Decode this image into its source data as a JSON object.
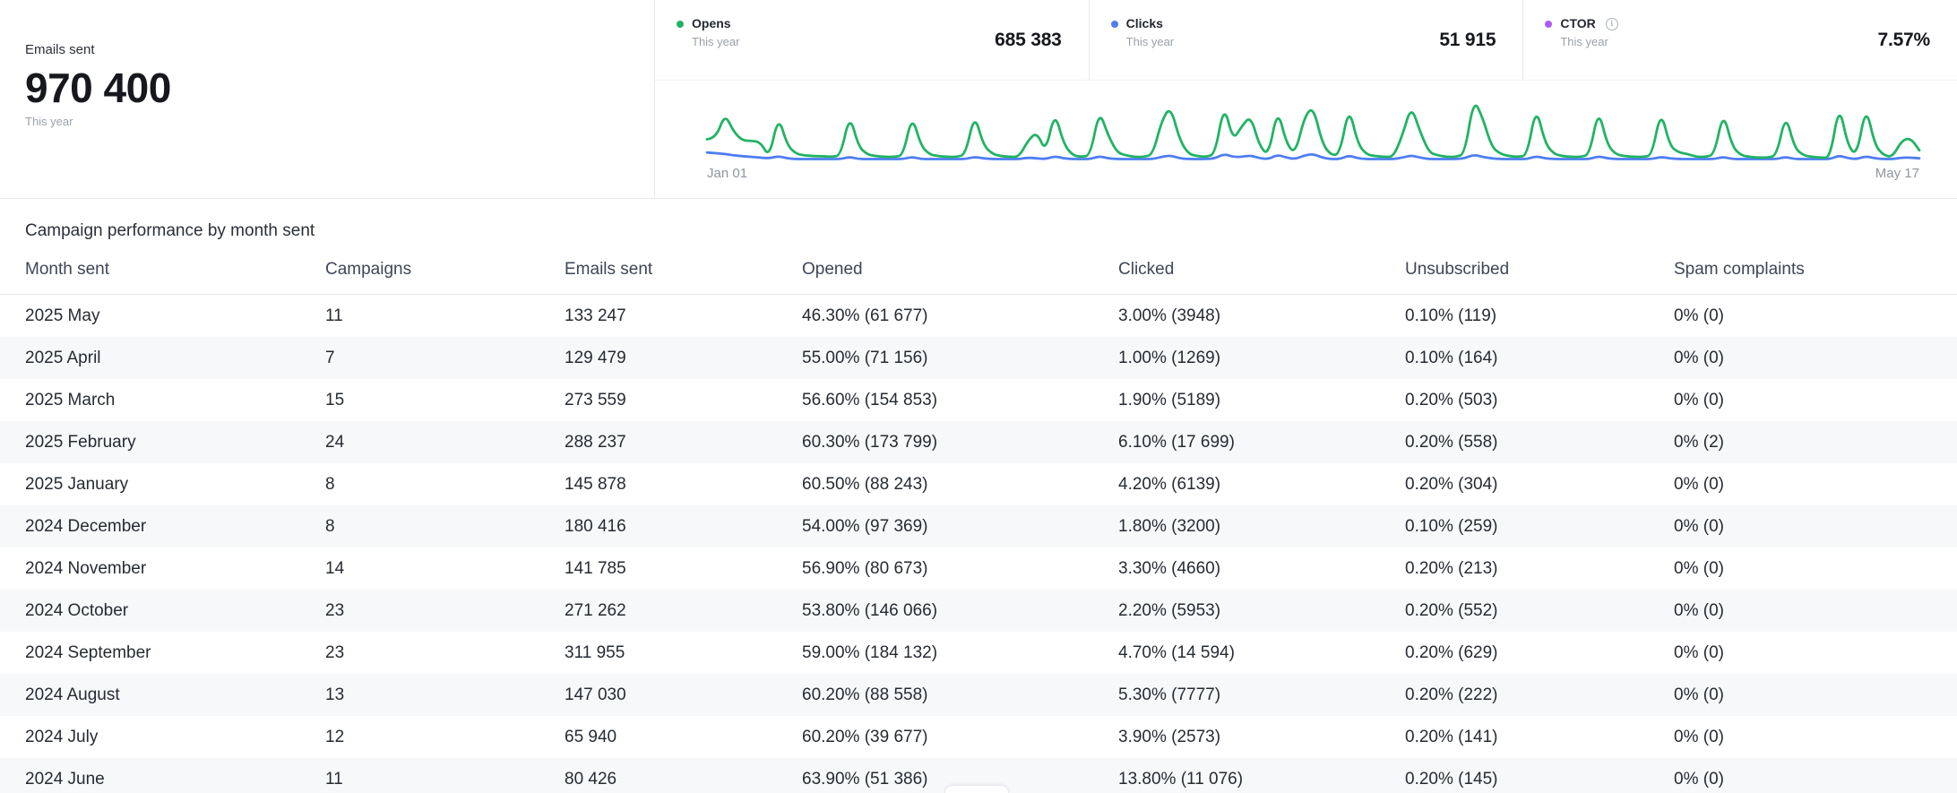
{
  "summary": {
    "label": "Emails sent",
    "value": "970 400",
    "period": "This year"
  },
  "stats": [
    {
      "label": "Opens",
      "period": "This year",
      "value": "685 383",
      "color": "#21b364",
      "has_info": false
    },
    {
      "label": "Clicks",
      "period": "This year",
      "value": "51 915",
      "color": "#4e7df2",
      "has_info": false
    },
    {
      "label": "CTOR",
      "period": "This year",
      "value": "7.57%",
      "color": "#ad5cf7",
      "has_info": true
    }
  ],
  "chart": {
    "type": "line",
    "x_start_label": "Jan 01",
    "x_end_label": "May 17",
    "series": [
      {
        "name": "Opens",
        "color": "#21b364",
        "values": [
          30,
          31,
          65,
          40,
          28,
          28,
          26,
          5,
          62,
          22,
          10,
          8,
          7,
          7,
          6,
          8,
          64,
          20,
          9,
          7,
          6,
          6,
          8,
          63,
          21,
          9,
          7,
          6,
          6,
          9,
          65,
          22,
          10,
          7,
          6,
          6,
          28,
          40,
          12,
          68,
          24,
          8,
          6,
          8,
          70,
          35,
          12,
          8,
          6,
          6,
          9,
          55,
          75,
          30,
          10,
          7,
          6,
          10,
          78,
          28,
          48,
          62,
          20,
          8,
          72,
          24,
          10,
          60,
          75,
          25,
          8,
          10,
          75,
          24,
          9,
          7,
          6,
          6,
          35,
          76,
          40,
          12,
          8,
          6,
          6,
          10,
          85,
          60,
          20,
          10,
          7,
          6,
          8,
          75,
          25,
          10,
          7,
          6,
          6,
          9,
          72,
          22,
          9,
          7,
          6,
          6,
          8,
          70,
          21,
          12,
          10,
          6,
          6,
          9,
          68,
          20,
          8,
          6,
          5,
          5,
          8,
          65,
          18,
          8,
          6,
          5,
          5,
          78,
          20,
          8,
          76,
          22,
          8,
          6,
          28,
          32,
          15
        ]
      },
      {
        "name": "Clicks",
        "color": "#4e7df2",
        "values": [
          12,
          11,
          10,
          8,
          7,
          6,
          5,
          4,
          7,
          4,
          3,
          3,
          3,
          3,
          3,
          3,
          6,
          3,
          3,
          3,
          3,
          3,
          3,
          6,
          3,
          3,
          3,
          3,
          3,
          3,
          6,
          4,
          3,
          3,
          3,
          3,
          5,
          4,
          3,
          7,
          4,
          3,
          3,
          3,
          7,
          4,
          3,
          3,
          3,
          3,
          3,
          6,
          8,
          4,
          3,
          3,
          3,
          4,
          10,
          6,
          6,
          8,
          4,
          3,
          9,
          5,
          3,
          8,
          10,
          5,
          3,
          3,
          8,
          4,
          3,
          3,
          3,
          3,
          5,
          8,
          5,
          3,
          3,
          3,
          3,
          4,
          9,
          6,
          4,
          3,
          3,
          3,
          3,
          7,
          4,
          3,
          3,
          3,
          3,
          3,
          7,
          4,
          3,
          3,
          3,
          3,
          3,
          6,
          4,
          3,
          3,
          3,
          3,
          3,
          6,
          3,
          3,
          3,
          3,
          3,
          3,
          6,
          3,
          3,
          3,
          3,
          3,
          8,
          4,
          3,
          7,
          4,
          3,
          3,
          5,
          5,
          4
        ]
      }
    ]
  },
  "table": {
    "title": "Campaign performance by month sent",
    "columns": [
      "Month sent",
      "Campaigns",
      "Emails sent",
      "Opened",
      "Clicked",
      "Unsubscribed",
      "Spam complaints"
    ],
    "rows": [
      [
        "2025 May",
        "11",
        "133 247",
        "46.30% (61 677)",
        "3.00% (3948)",
        "0.10% (119)",
        "0% (0)"
      ],
      [
        "2025 April",
        "7",
        "129 479",
        "55.00% (71 156)",
        "1.00% (1269)",
        "0.10% (164)",
        "0% (0)"
      ],
      [
        "2025 March",
        "15",
        "273 559",
        "56.60% (154 853)",
        "1.90% (5189)",
        "0.20% (503)",
        "0% (0)"
      ],
      [
        "2025 February",
        "24",
        "288 237",
        "60.30% (173 799)",
        "6.10% (17 699)",
        "0.20% (558)",
        "0% (2)"
      ],
      [
        "2025 January",
        "8",
        "145 878",
        "60.50% (88 243)",
        "4.20% (6139)",
        "0.20% (304)",
        "0% (0)"
      ],
      [
        "2024 December",
        "8",
        "180 416",
        "54.00% (97 369)",
        "1.80% (3200)",
        "0.10% (259)",
        "0% (0)"
      ],
      [
        "2024 November",
        "14",
        "141 785",
        "56.90% (80 673)",
        "3.30% (4660)",
        "0.20% (213)",
        "0% (0)"
      ],
      [
        "2024 October",
        "23",
        "271 262",
        "53.80% (146 066)",
        "2.20% (5953)",
        "0.20% (552)",
        "0% (0)"
      ],
      [
        "2024 September",
        "23",
        "311 955",
        "59.00% (184 132)",
        "4.70% (14 594)",
        "0.20% (629)",
        "0% (0)"
      ],
      [
        "2024 August",
        "13",
        "147 030",
        "60.20% (88 558)",
        "5.30% (7777)",
        "0.20% (222)",
        "0% (0)"
      ],
      [
        "2024 July",
        "12",
        "65 940",
        "60.20% (39 677)",
        "3.90% (2573)",
        "0.20% (141)",
        "0% (0)"
      ],
      [
        "2024 June",
        "11",
        "80 426",
        "63.90% (51 386)",
        "13.80% (11 076)",
        "0.20% (145)",
        "0% (0)"
      ]
    ]
  }
}
